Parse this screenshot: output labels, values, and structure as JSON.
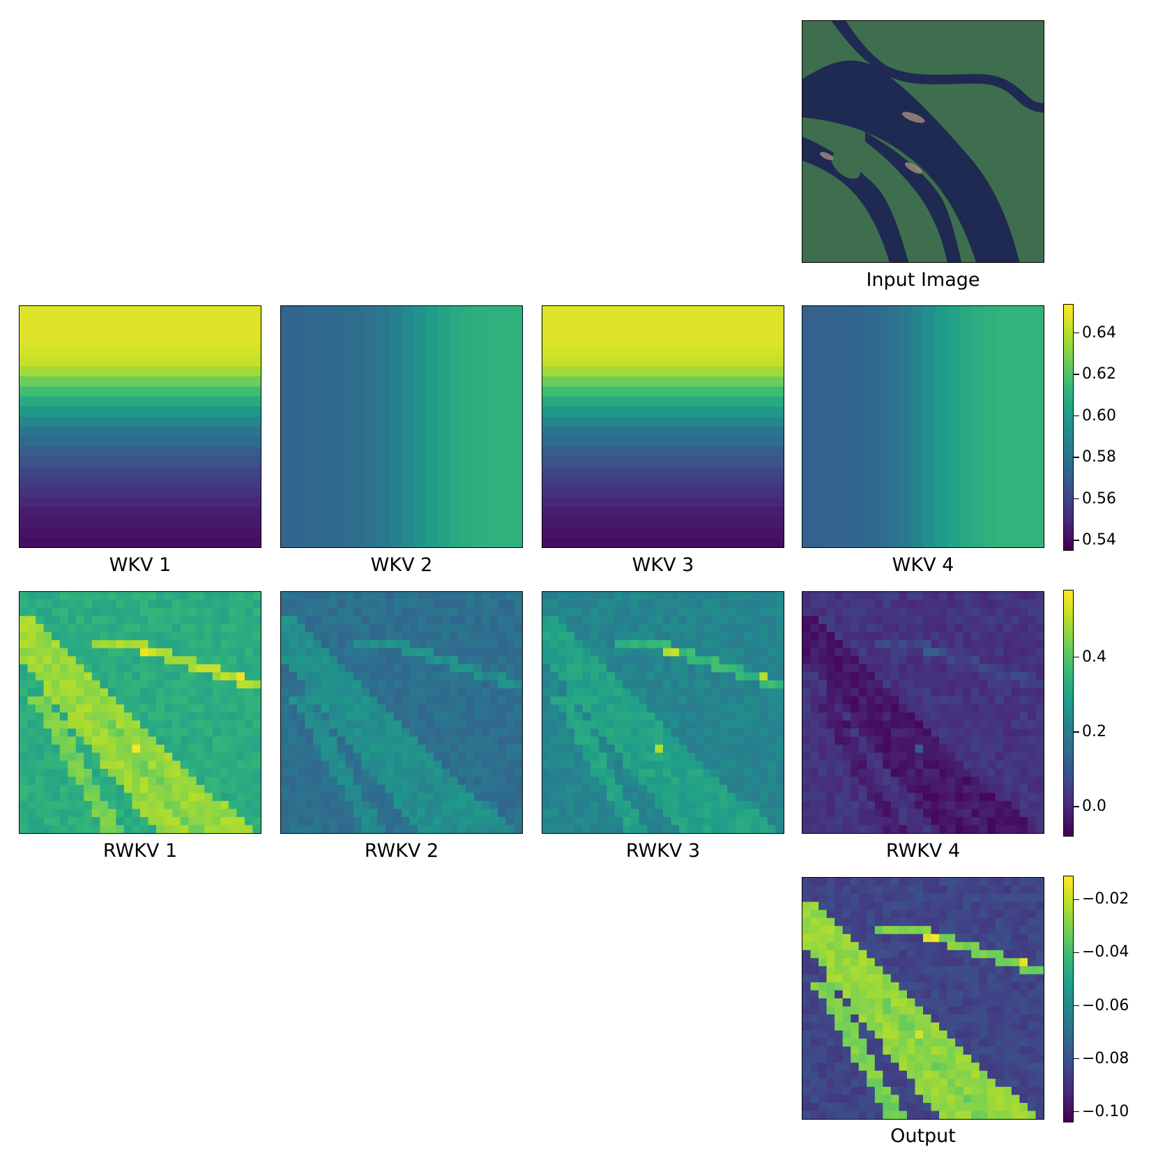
{
  "colors": {
    "viridis": [
      "#440154",
      "#482878",
      "#3e4a89",
      "#31688e",
      "#26828e",
      "#1f9e89",
      "#35b779",
      "#6ece58",
      "#b5de2b",
      "#fde725"
    ],
    "water": "#1f2a52",
    "vegetation": "#3f6e4e",
    "sediment": "#b99a86"
  },
  "chart_data": [
    {
      "type": "image",
      "label": "Input Image"
    },
    {
      "type": "heatmap",
      "label": "WKV 1",
      "gradient": "vertical",
      "levels": 24,
      "values_start_to_end": [
        0.648,
        0.648,
        0.648,
        0.648,
        0.646,
        0.644,
        0.637,
        0.627,
        0.617,
        0.607,
        0.598,
        0.59,
        0.582,
        0.576,
        0.57,
        0.565,
        0.56,
        0.556,
        0.552,
        0.548,
        0.545,
        0.543,
        0.541,
        0.539
      ]
    },
    {
      "type": "heatmap",
      "label": "WKV 2",
      "gradient": "horizontal",
      "levels": 20,
      "values_start_to_end": [
        0.574,
        0.574,
        0.575,
        0.575,
        0.576,
        0.577,
        0.578,
        0.58,
        0.583,
        0.587,
        0.591,
        0.596,
        0.6,
        0.604,
        0.607,
        0.609,
        0.61,
        0.611,
        0.611,
        0.611
      ]
    },
    {
      "type": "heatmap",
      "label": "WKV 3",
      "gradient": "vertical",
      "levels": 24,
      "values_start_to_end": [
        0.648,
        0.648,
        0.648,
        0.648,
        0.646,
        0.644,
        0.637,
        0.627,
        0.617,
        0.607,
        0.598,
        0.59,
        0.582,
        0.576,
        0.57,
        0.565,
        0.56,
        0.556,
        0.552,
        0.548,
        0.545,
        0.543,
        0.541,
        0.539
      ]
    },
    {
      "type": "heatmap",
      "label": "WKV 4",
      "gradient": "horizontal",
      "levels": 20,
      "values_start_to_end": [
        0.572,
        0.572,
        0.573,
        0.573,
        0.574,
        0.575,
        0.577,
        0.58,
        0.584,
        0.589,
        0.594,
        0.599,
        0.603,
        0.607,
        0.609,
        0.611,
        0.612,
        0.612,
        0.612,
        0.612
      ]
    },
    {
      "type": "heatmap",
      "label": "RWKV 1",
      "grid": [
        30,
        30
      ],
      "background": 0.33,
      "river": 0.48,
      "channel": 0.44,
      "creek": 0.5,
      "peak": 0.55
    },
    {
      "type": "heatmap",
      "label": "RWKV 2",
      "grid": [
        30,
        30
      ],
      "background": 0.16,
      "river": 0.25,
      "channel": 0.24,
      "creek": 0.25,
      "peak": 0.27
    },
    {
      "type": "heatmap",
      "label": "RWKV 3",
      "grid": [
        30,
        30
      ],
      "background": 0.22,
      "river": 0.3,
      "channel": 0.3,
      "creek": 0.36,
      "peak": 0.52
    },
    {
      "type": "heatmap",
      "label": "RWKV 4",
      "grid": [
        30,
        30
      ],
      "background": 0.02,
      "river": -0.04,
      "channel": -0.03,
      "creek": 0.06,
      "peak": 0.1
    },
    {
      "type": "heatmap",
      "label": "Output",
      "grid": [
        30,
        30
      ],
      "background": -0.085,
      "river": -0.026,
      "channel": -0.03,
      "creek": -0.03,
      "peak": -0.016
    },
    {
      "type": "colorbar",
      "for": "WKV",
      "range": [
        0.535,
        0.654
      ],
      "ticks": [
        "0.64",
        "0.62",
        "0.60",
        "0.58",
        "0.56",
        "0.54"
      ],
      "tick_values": [
        0.64,
        0.62,
        0.6,
        0.58,
        0.56,
        0.54
      ]
    },
    {
      "type": "colorbar",
      "for": "RWKV",
      "range": [
        -0.08,
        0.58
      ],
      "ticks": [
        "0.4",
        "0.2",
        "0.0"
      ],
      "tick_values": [
        0.4,
        0.2,
        0.0
      ]
    },
    {
      "type": "colorbar",
      "for": "Output",
      "range": [
        -0.104,
        -0.011
      ],
      "ticks": [
        "−0.02",
        "−0.04",
        "−0.06",
        "−0.08",
        "−0.10"
      ],
      "tick_values": [
        -0.02,
        -0.04,
        -0.06,
        -0.08,
        -0.1
      ]
    }
  ]
}
